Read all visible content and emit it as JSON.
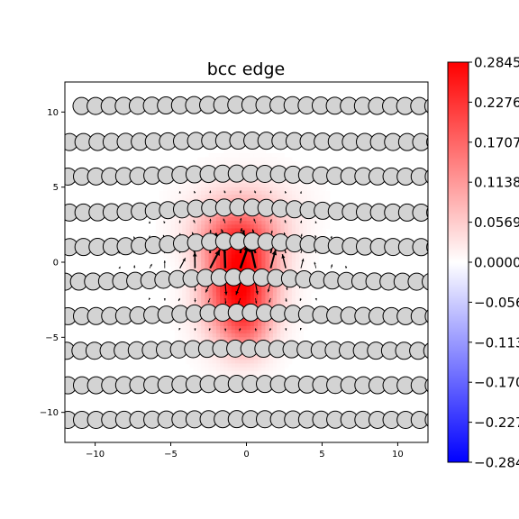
{
  "chart_data": {
    "type": "heatmap",
    "title": "bcc edge",
    "xlabel": "",
    "ylabel": "",
    "xlim": [
      -12,
      12
    ],
    "ylim": [
      -12,
      12
    ],
    "x_ticks": [
      -10,
      -5,
      0,
      5,
      10
    ],
    "y_ticks": [
      10,
      5,
      0,
      -5,
      -10
    ],
    "x_tick_labels": [
      "−10",
      "−5",
      "0",
      "5",
      "10"
    ],
    "y_tick_labels": [
      "10",
      "5",
      "0",
      "−5",
      "−10"
    ],
    "colormap": "bwr",
    "colors": {
      "low": "#0000ff",
      "mid": "#ffffff",
      "high": "#ff0000",
      "atom_fill": "#d3d3d3",
      "atom_edge": "#000000"
    },
    "colorbar": {
      "min": -0.2845,
      "max": 0.2845,
      "ticks": [
        0.2845,
        0.2276,
        0.1707,
        0.1138,
        0.0569,
        0.0,
        -0.0569,
        -0.1138,
        -0.1707,
        -0.2276,
        -0.2845
      ],
      "tick_labels": [
        "0.2845",
        "0.2276",
        "0.1707",
        "0.1138",
        "0.0569",
        "0.0000",
        "−0.0569",
        "−0.1138",
        "−0.1707",
        "−0.2276",
        "−0.2845"
      ]
    },
    "atom_rows": [
      {
        "y": 10.4,
        "x_start": -10.9,
        "spacing": 0.93,
        "amp": 0.08
      },
      {
        "y": 8.0,
        "x_start": -11.7,
        "spacing": 0.93,
        "amp": 0.1
      },
      {
        "y": 5.7,
        "x_start": -11.8,
        "spacing": 0.93,
        "amp": 0.2
      },
      {
        "y": 3.3,
        "x_start": -11.7,
        "spacing": 0.93,
        "amp": 0.35
      },
      {
        "y": 1.0,
        "x_start": -11.7,
        "spacing": 0.93,
        "amp": 0.4
      },
      {
        "y": -1.3,
        "x_start": -12.0,
        "spacing": 0.93,
        "amp": 0.3
      },
      {
        "y": -3.6,
        "x_start": -11.8,
        "spacing": 0.93,
        "amp": 0.25
      },
      {
        "y": -5.9,
        "x_start": -11.9,
        "spacing": 0.93,
        "amp": 0.15
      },
      {
        "y": -8.2,
        "x_start": -11.8,
        "spacing": 0.93,
        "amp": 0.1
      },
      {
        "y": -10.5,
        "x_start": -11.8,
        "spacing": 0.93,
        "amp": 0.05
      }
    ],
    "atom_radius": 0.5,
    "strain_peaks": [
      {
        "x": -0.5,
        "y": -1.5,
        "value": 0.2845,
        "sx": 1.6,
        "sy": 2.4
      },
      {
        "x": -0.5,
        "y": 1.8,
        "value": 0.12,
        "sx": 2.0,
        "sy": 1.5
      },
      {
        "x": 0.0,
        "y": -4.5,
        "value": 0.06,
        "sx": 1.0,
        "sy": 1.3
      },
      {
        "x": 0.0,
        "y": 4.2,
        "value": 0.03,
        "sx": 2.5,
        "sy": 1.5
      },
      {
        "x": -3.0,
        "y": -0.5,
        "value": -0.01,
        "sx": 1.6,
        "sy": 1.0
      }
    ],
    "displacement_field": {
      "x_start": -11.4,
      "y_start": -11.4,
      "step": 1.0,
      "core": {
        "x": -0.6,
        "y": 0.0
      },
      "max_length": 2.4
    }
  }
}
